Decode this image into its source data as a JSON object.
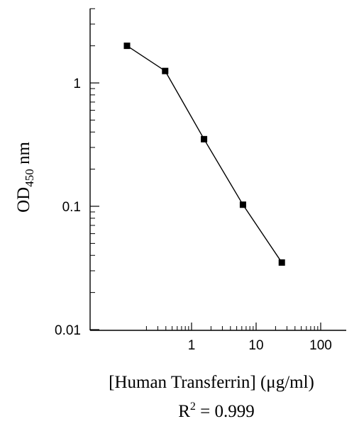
{
  "chart_data": {
    "type": "line",
    "title": "",
    "xlabel": "[Human Transferrin] (μg/ml)",
    "ylabel": {
      "main": "OD",
      "subscript": "450",
      "unit": "nm"
    },
    "x_scale": "log",
    "y_scale": "log",
    "xlim": [
      0.2,
      100
    ],
    "ylim": [
      0.01,
      4
    ],
    "x_ticks": [
      {
        "value": 1,
        "label": "1"
      },
      {
        "value": 10,
        "label": "10"
      },
      {
        "value": 100,
        "label": "100"
      }
    ],
    "y_ticks": [
      {
        "value": 0.01,
        "label": "0.01"
      },
      {
        "value": 0.1,
        "label": "0.1"
      },
      {
        "value": 1,
        "label": "1"
      }
    ],
    "grid": false,
    "legend": "none",
    "series": [
      {
        "marker": "square",
        "color": "#000000",
        "points": [
          {
            "x": 0.1,
            "y": 2.0
          },
          {
            "x": 0.39,
            "y": 1.25
          },
          {
            "x": 1.56,
            "y": 0.35
          },
          {
            "x": 6.25,
            "y": 0.103
          },
          {
            "x": 25,
            "y": 0.035
          }
        ]
      }
    ],
    "annotation": {
      "base": "R",
      "superscript": "2",
      "rest": " = 0.999"
    }
  }
}
